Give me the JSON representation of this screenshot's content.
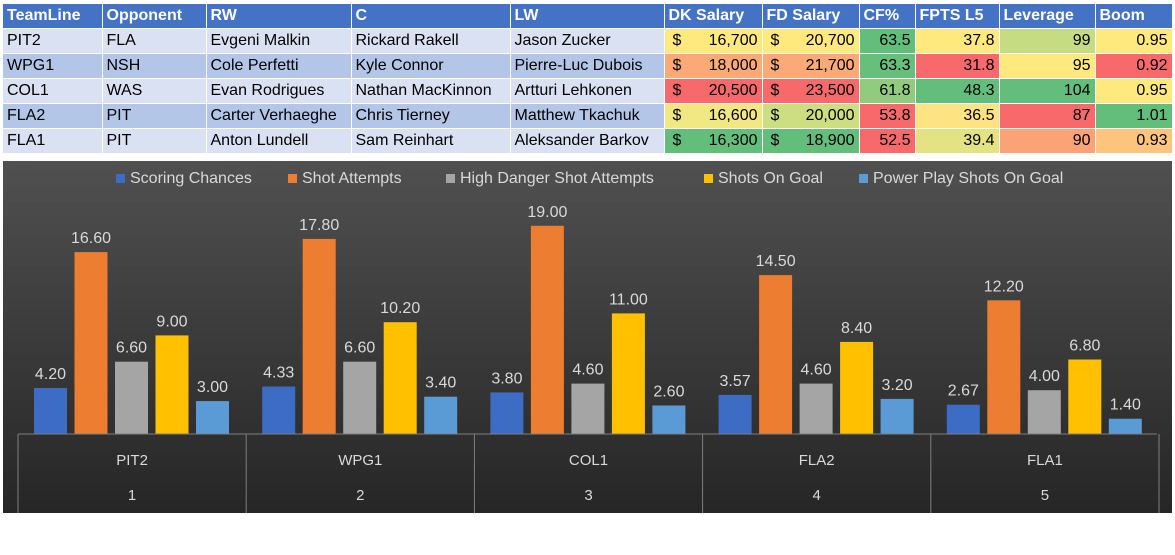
{
  "table": {
    "headers": [
      "TeamLine",
      "Opponent",
      "RW",
      "C",
      "LW",
      "DK Salary",
      "FD Salary",
      "CF%",
      "FPTS L5",
      "Leverage",
      "Boom"
    ],
    "currency_symbol": "$",
    "rows": [
      {
        "teamline": "PIT2",
        "opponent": "FLA",
        "rw": "Evgeni Malkin",
        "c": "Rickard Rakell",
        "lw": "Jason Zucker",
        "dk_salary": "16,700",
        "fd_salary": "20,700",
        "cf": "63.5",
        "fpts_l5": "37.8",
        "leverage": "99",
        "boom": "0.95",
        "colors": {
          "dk": "#fde97d",
          "fd": "#fde97d",
          "cf": "#63be7b",
          "fpts": "#fde97d",
          "lev": "#c5dc82",
          "boom": "#fde97d"
        }
      },
      {
        "teamline": "WPG1",
        "opponent": "NSH",
        "rw": "Cole Perfetti",
        "c": "Kyle Connor",
        "lw": "Pierre-Luc Dubois",
        "dk_salary": "18,000",
        "fd_salary": "21,700",
        "cf": "63.3",
        "fpts_l5": "31.8",
        "leverage": "95",
        "boom": "0.92",
        "colors": {
          "dk": "#fbaa77",
          "fd": "#fbaa77",
          "cf": "#67bf7c",
          "fpts": "#f8696b",
          "lev": "#fde97d",
          "boom": "#f8696b"
        }
      },
      {
        "teamline": "COL1",
        "opponent": "WAS",
        "rw": "Evan Rodrigues",
        "c": "Nathan MacKinnon",
        "lw": "Artturi Lehkonen",
        "dk_salary": "20,500",
        "fd_salary": "23,500",
        "cf": "61.8",
        "fpts_l5": "48.3",
        "leverage": "104",
        "boom": "0.95",
        "colors": {
          "dk": "#f8696b",
          "fd": "#f8696b",
          "cf": "#91cb7e",
          "fpts": "#63be7b",
          "lev": "#63be7b",
          "boom": "#fde97d"
        }
      },
      {
        "teamline": "FLA2",
        "opponent": "PIT",
        "rw": "Carter Verhaeghe",
        "c": "Chris Tierney",
        "lw": "Matthew Tkachuk",
        "dk_salary": "16,600",
        "fd_salary": "20,000",
        "cf": "53.8",
        "fpts_l5": "36.5",
        "leverage": "87",
        "boom": "1.01",
        "colors": {
          "dk": "#f2e883",
          "fd": "#cddd82",
          "cf": "#f8696b",
          "fpts": "#fde381",
          "lev": "#f8696b",
          "boom": "#63be7b"
        }
      },
      {
        "teamline": "FLA1",
        "opponent": "PIT",
        "rw": "Anton Lundell",
        "c": "Sam Reinhart",
        "lw": "Aleksander Barkov",
        "dk_salary": "16,300",
        "fd_salary": "18,900",
        "cf": "52.5",
        "fpts_l5": "39.4",
        "leverage": "90",
        "boom": "0.93",
        "colors": {
          "dk": "#63be7b",
          "fd": "#63be7b",
          "cf": "#f8696b",
          "fpts": "#e4e383",
          "lev": "#fba276",
          "boom": "#fcc47c"
        }
      }
    ]
  },
  "chart_data": {
    "type": "bar",
    "categories": [
      "PIT2",
      "WPG1",
      "COL1",
      "FLA2",
      "FLA1"
    ],
    "sub_categories": [
      "1",
      "2",
      "3",
      "4",
      "5"
    ],
    "legend_position": "top",
    "grid": false,
    "ylim": [
      0,
      20
    ],
    "series": [
      {
        "name": "Scoring Chances",
        "color": "#3d6cc4",
        "values": [
          4.2,
          4.33,
          3.8,
          3.57,
          2.67
        ],
        "labels": [
          "4.20",
          "4.33",
          "3.80",
          "3.57",
          "2.67"
        ]
      },
      {
        "name": "Shot Attempts",
        "color": "#ed7d31",
        "values": [
          16.6,
          17.8,
          19.0,
          14.5,
          12.2
        ],
        "labels": [
          "16.60",
          "17.80",
          "19.00",
          "14.50",
          "12.20"
        ]
      },
      {
        "name": "High Danger Shot Attempts",
        "color": "#a5a5a5",
        "values": [
          6.6,
          6.6,
          4.6,
          4.6,
          4.0
        ],
        "labels": [
          "6.60",
          "6.60",
          "4.60",
          "4.60",
          "4.00"
        ]
      },
      {
        "name": "Shots On Goal",
        "color": "#ffc000",
        "values": [
          9.0,
          10.2,
          11.0,
          8.4,
          6.8
        ],
        "labels": [
          "9.00",
          "10.20",
          "11.00",
          "8.40",
          "6.80"
        ]
      },
      {
        "name": "Power Play Shots On Goal",
        "color": "#5b9bd5",
        "values": [
          3.0,
          3.4,
          2.6,
          3.2,
          1.4
        ],
        "labels": [
          "3.00",
          "3.40",
          "2.60",
          "3.20",
          "1.40"
        ]
      }
    ]
  }
}
